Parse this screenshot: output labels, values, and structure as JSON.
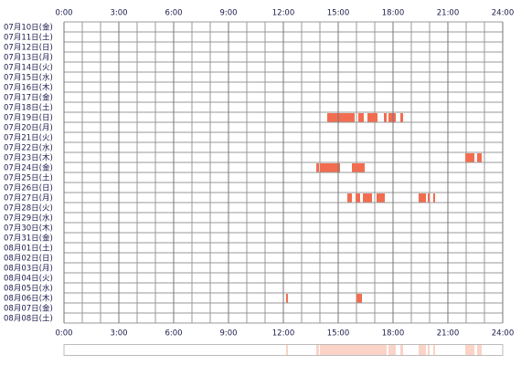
{
  "chart_data": {
    "type": "timeline",
    "color": "#f26d50",
    "summary_color": "#fbd3c7",
    "grid": true,
    "xlim": [
      0,
      24
    ],
    "xticks": [
      {
        "value": 0,
        "label": "0:00"
      },
      {
        "value": 3,
        "label": "3:00"
      },
      {
        "value": 6,
        "label": "6:00"
      },
      {
        "value": 9,
        "label": "9:00"
      },
      {
        "value": 12,
        "label": "12:00"
      },
      {
        "value": 15,
        "label": "15:00"
      },
      {
        "value": 18,
        "label": "18:00"
      },
      {
        "value": 21,
        "label": "21:00"
      },
      {
        "value": 24,
        "label": "24:00"
      }
    ],
    "categories": [
      "07月10日(金)",
      "07月11日(土)",
      "07月12日(日)",
      "07月13日(月)",
      "07月14日(火)",
      "07月15日(水)",
      "07月16日(木)",
      "07月17日(金)",
      "07月18日(土)",
      "07月19日(日)",
      "07月20日(月)",
      "07月21日(火)",
      "07月22日(水)",
      "07月23日(木)",
      "07月24日(金)",
      "07月25日(土)",
      "07月26日(日)",
      "07月27日(月)",
      "07月28日(火)",
      "07月29日(水)",
      "07月30日(木)",
      "07月31日(金)",
      "08月01日(土)",
      "08月02日(日)",
      "08月03日(月)",
      "08月04日(火)",
      "08月05日(水)",
      "08月06日(木)",
      "08月07日(金)",
      "08月08日(土)"
    ],
    "values": [
      [],
      [],
      [],
      [],
      [],
      [],
      [],
      [],
      [],
      [
        [
          14.4,
          15.9
        ],
        [
          16.1,
          16.4
        ],
        [
          16.6,
          17.15
        ],
        [
          17.5,
          17.65
        ],
        [
          17.75,
          18.15
        ],
        [
          18.4,
          18.55
        ]
      ],
      [],
      [],
      [],
      [
        [
          21.95,
          22.45
        ],
        [
          22.6,
          22.85
        ]
      ],
      [
        [
          13.8,
          13.95
        ],
        [
          14.0,
          15.1
        ],
        [
          15.75,
          16.45
        ]
      ],
      [],
      [],
      [
        [
          15.5,
          15.75
        ],
        [
          15.95,
          16.2
        ],
        [
          16.35,
          16.85
        ],
        [
          17.1,
          17.55
        ],
        [
          19.4,
          19.8
        ],
        [
          19.9,
          20.0
        ],
        [
          20.2,
          20.3
        ]
      ],
      [],
      [],
      [],
      [],
      [],
      [],
      [],
      [],
      [],
      [
        [
          12.15,
          12.25
        ],
        [
          16.0,
          16.3
        ]
      ],
      [],
      [],
      []
    ]
  }
}
